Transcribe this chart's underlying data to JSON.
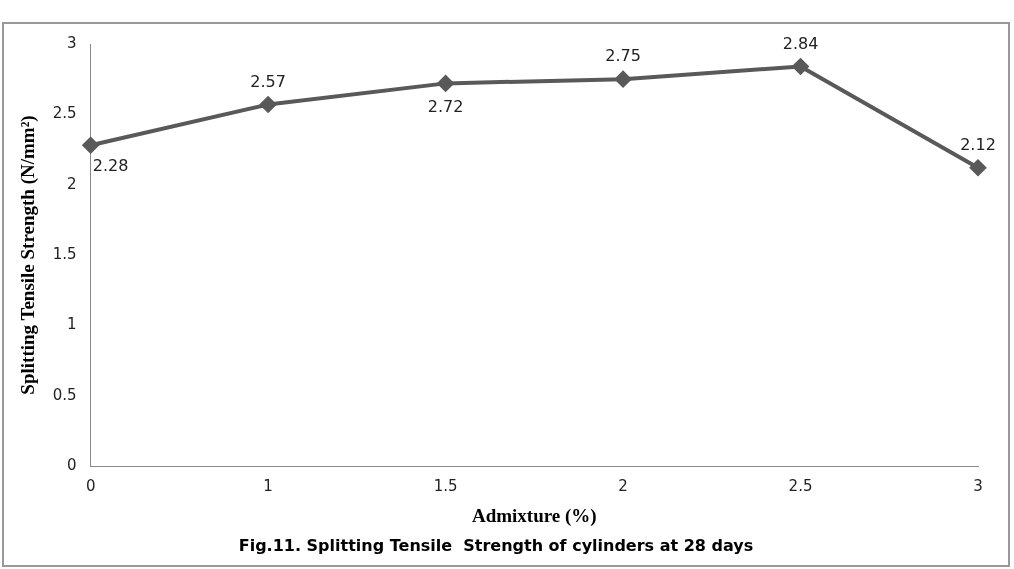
{
  "chart_data": {
    "type": "line",
    "title": "Fig.11. Splitting Tensile  Strength of cylinders at 28 days",
    "xlabel": "Admixture (%)",
    "ylabel": "Splitting Tensile Strength (N/mm²)",
    "categories": [
      "0",
      "1",
      "1.5",
      "2",
      "2.5",
      "3"
    ],
    "series": [
      {
        "color": "#595959",
        "values": [
          2.28,
          2.57,
          2.72,
          2.75,
          2.84,
          2.12
        ]
      }
    ],
    "ylim": [
      0,
      3
    ],
    "yticks": [
      0,
      0.5,
      1,
      1.5,
      2,
      2.5,
      3
    ],
    "grid": false,
    "legend": false,
    "marker": "diamond",
    "line_style": "solid",
    "data_labels": true
  }
}
